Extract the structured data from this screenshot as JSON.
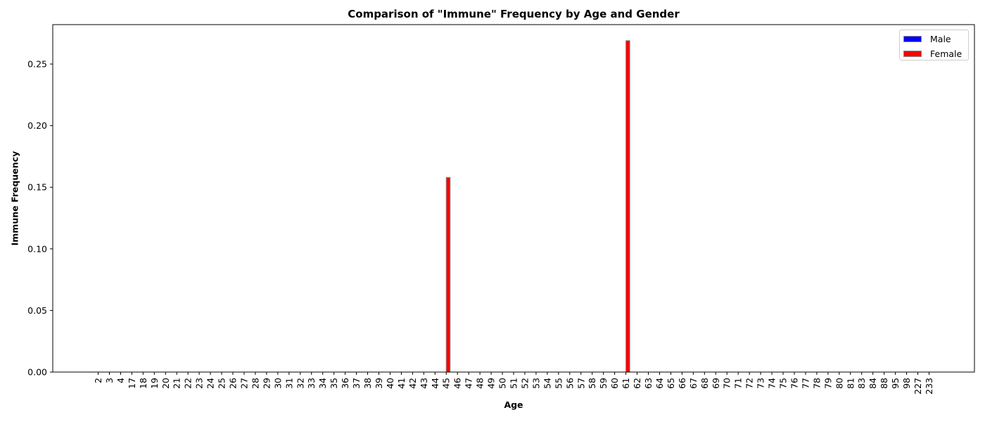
{
  "chart_data": {
    "type": "bar",
    "title": "Comparison of \"Immune\" Frequency by Age and Gender",
    "xlabel": "Age",
    "ylabel": "Immune Frequency",
    "categories": [
      "2",
      "3",
      "4",
      "17",
      "18",
      "19",
      "20",
      "21",
      "22",
      "23",
      "24",
      "25",
      "26",
      "27",
      "28",
      "29",
      "30",
      "31",
      "32",
      "33",
      "34",
      "35",
      "36",
      "37",
      "38",
      "39",
      "40",
      "41",
      "42",
      "43",
      "44",
      "45",
      "46",
      "47",
      "48",
      "49",
      "50",
      "51",
      "52",
      "53",
      "54",
      "55",
      "56",
      "57",
      "58",
      "59",
      "60",
      "61",
      "62",
      "63",
      "64",
      "65",
      "66",
      "67",
      "68",
      "69",
      "70",
      "71",
      "72",
      "73",
      "74",
      "75",
      "76",
      "77",
      "78",
      "79",
      "80",
      "81",
      "83",
      "84",
      "88",
      "95",
      "98",
      "227",
      "233"
    ],
    "series": [
      {
        "name": "Male",
        "color": "#0000ff",
        "values": [
          0,
          0,
          0,
          0,
          0,
          0,
          0,
          0,
          0,
          0,
          0,
          0,
          0,
          0,
          0,
          0,
          0,
          0,
          0,
          0,
          0,
          0,
          0,
          0,
          0,
          0,
          0,
          0,
          0,
          0,
          0,
          0,
          0,
          0,
          0,
          0,
          0,
          0,
          0,
          0,
          0,
          0,
          0,
          0,
          0,
          0,
          0,
          0,
          0,
          0,
          0,
          0,
          0,
          0,
          0,
          0,
          0,
          0,
          0,
          0,
          0,
          0,
          0,
          0,
          0,
          0,
          0,
          0,
          0,
          0,
          0,
          0,
          0,
          0,
          0
        ]
      },
      {
        "name": "Female",
        "color": "#ff0000",
        "values": [
          0,
          0,
          0,
          0,
          0,
          0,
          0,
          0,
          0,
          0,
          0,
          0,
          0,
          0,
          0,
          0,
          0,
          0,
          0,
          0,
          0,
          0,
          0,
          0,
          0,
          0,
          0,
          0,
          0,
          0,
          0,
          0.158,
          0,
          0,
          0,
          0,
          0,
          0,
          0,
          0,
          0,
          0,
          0,
          0,
          0,
          0,
          0,
          0.269,
          0,
          0,
          0,
          0,
          0,
          0,
          0,
          0,
          0,
          0,
          0,
          0,
          0,
          0,
          0,
          0,
          0,
          0,
          0,
          0,
          0,
          0,
          0,
          0,
          0,
          0,
          0
        ]
      }
    ],
    "ylim": [
      0,
      0.282
    ],
    "yticks": [
      "0.00",
      "0.05",
      "0.10",
      "0.15",
      "0.20",
      "0.25"
    ],
    "legend_position": "top-right",
    "grid": false,
    "bar_edge_color": "#888888"
  }
}
